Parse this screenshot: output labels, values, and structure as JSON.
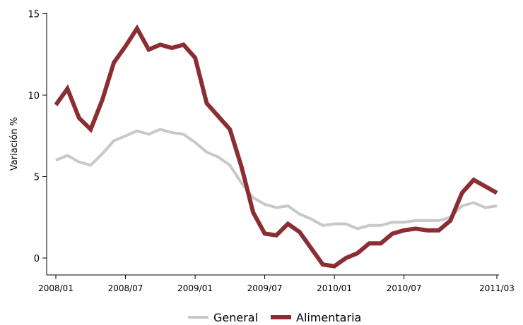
{
  "chart_data": {
    "type": "line",
    "xlabel": "",
    "ylabel": "Variación %",
    "ylim": [
      0,
      15
    ],
    "yticks": [
      0,
      5,
      10,
      15
    ],
    "x_tick_labels": [
      "2008/01",
      "2008/07",
      "2009/01",
      "2009/07",
      "2010/01",
      "2010/07",
      "2011/03"
    ],
    "x_tick_positions": [
      0,
      6,
      12,
      18,
      24,
      30,
      38
    ],
    "x_count": 39,
    "grid": false,
    "legend_position": "bottom",
    "series": [
      {
        "name": "General",
        "color": "#c8c8c8",
        "values": [
          6.0,
          6.3,
          5.9,
          5.7,
          6.4,
          7.2,
          7.5,
          7.8,
          7.6,
          7.9,
          7.7,
          7.6,
          7.1,
          6.5,
          6.2,
          5.7,
          4.6,
          3.7,
          3.3,
          3.1,
          3.2,
          2.7,
          2.4,
          2.0,
          2.1,
          2.1,
          1.8,
          2.0,
          2.0,
          2.2,
          2.2,
          2.3,
          2.3,
          2.3,
          2.5,
          3.2,
          3.4,
          3.1,
          3.2
        ]
      },
      {
        "name": "Alimentaria",
        "color": "#8b2e33",
        "values": [
          9.4,
          10.4,
          8.6,
          7.9,
          9.7,
          12.0,
          13.0,
          14.1,
          12.8,
          13.1,
          12.9,
          13.1,
          12.3,
          9.5,
          8.7,
          7.9,
          5.6,
          2.8,
          1.5,
          1.4,
          2.1,
          1.6,
          0.6,
          -0.4,
          -0.5,
          0.0,
          0.3,
          0.9,
          0.9,
          1.5,
          1.7,
          1.8,
          1.7,
          1.7,
          2.3,
          4.0,
          4.8,
          4.4,
          4.0
        ]
      }
    ]
  }
}
